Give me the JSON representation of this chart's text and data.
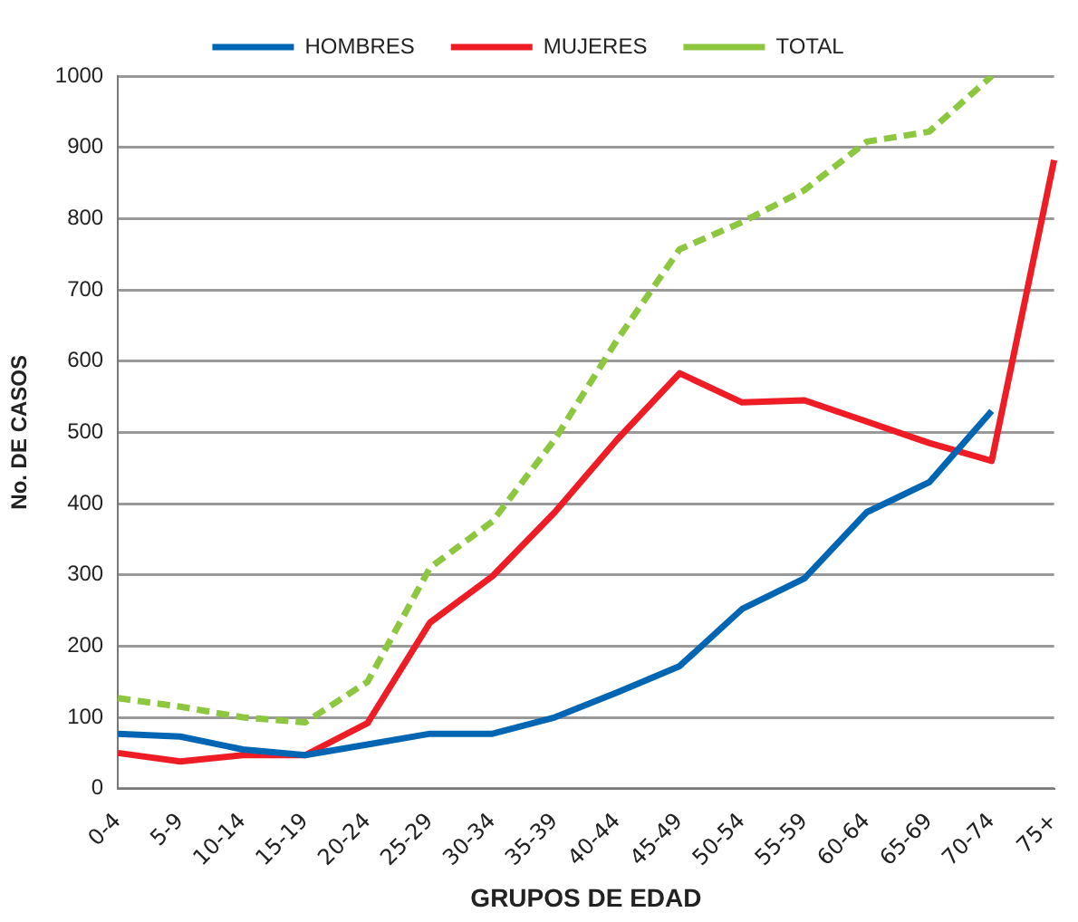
{
  "chart_data": {
    "type": "line",
    "xlabel": "GRUPOS DE EDAD",
    "ylabel": "No. DE CASOS",
    "categories": [
      "0-4",
      "5-9",
      "10-14",
      "15-19",
      "20-24",
      "25-29",
      "30-34",
      "35-39",
      "40-44",
      "45-49",
      "50-54",
      "55-59",
      "60-64",
      "65-69",
      "70-74",
      "75+"
    ],
    "series": [
      {
        "name": "HOMBRES",
        "color": "#0066b3",
        "line_style": "solid",
        "values": [
          77,
          73,
          55,
          47,
          62,
          77,
          77,
          100,
          135,
          172,
          252,
          295,
          388,
          430,
          530,
          null
        ]
      },
      {
        "name": "MUJERES",
        "color": "#ee1c25",
        "line_style": "solid",
        "values": [
          50,
          38,
          47,
          47,
          92,
          233,
          298,
          388,
          490,
          583,
          542,
          545,
          515,
          485,
          460,
          882
        ]
      },
      {
        "name": "TOTAL",
        "color": "#8dc63f",
        "line_style": "dashed",
        "values": [
          127,
          115,
          100,
          93,
          150,
          310,
          375,
          490,
          630,
          757,
          795,
          840,
          908,
          922,
          1000,
          null
        ]
      }
    ],
    "ylim": [
      0,
      1000
    ],
    "yticks": [
      0,
      100,
      200,
      300,
      400,
      500,
      600,
      700,
      800,
      900,
      1000
    ],
    "grid": "y",
    "legend": "top",
    "marker": "none"
  }
}
